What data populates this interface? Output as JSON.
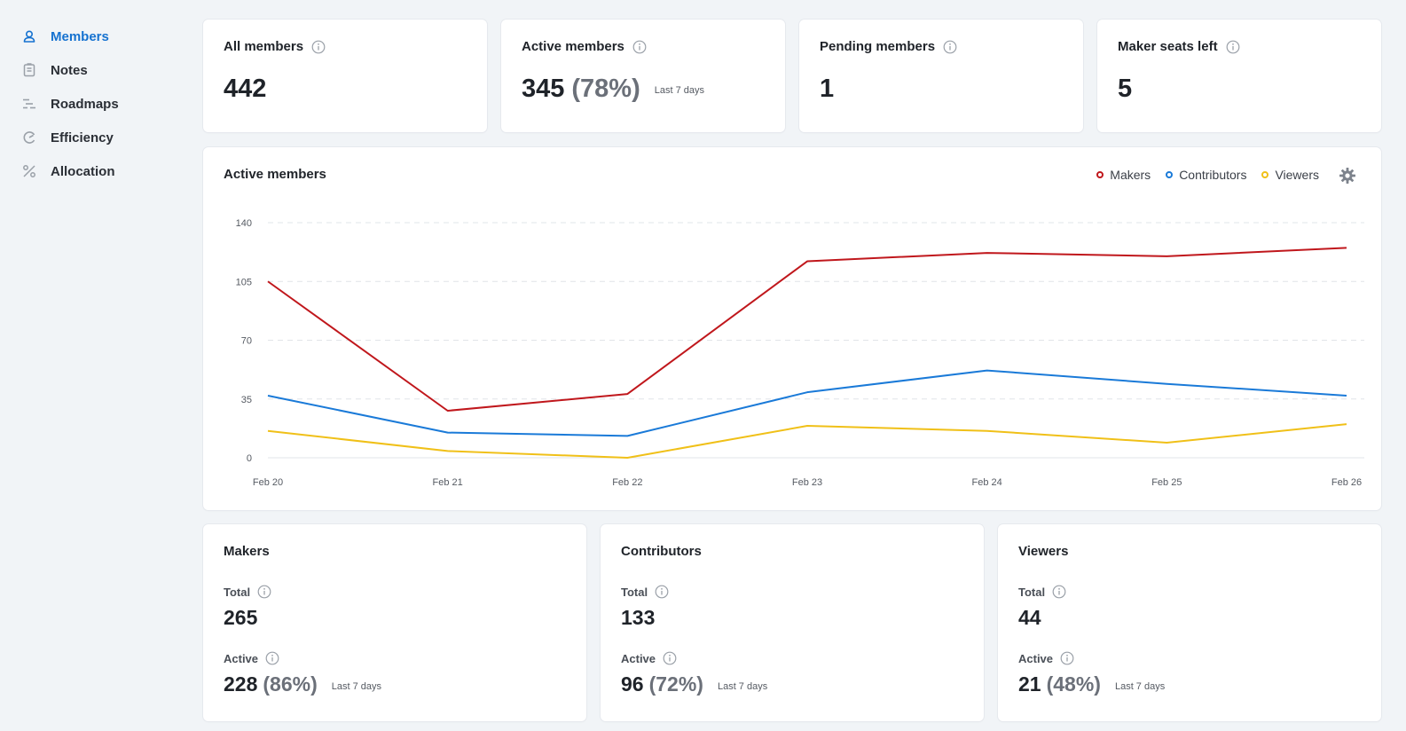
{
  "sidebar": {
    "items": [
      {
        "label": "Members",
        "icon": "members-icon",
        "active": true
      },
      {
        "label": "Notes",
        "icon": "notes-icon",
        "active": false
      },
      {
        "label": "Roadmaps",
        "icon": "roadmaps-icon",
        "active": false
      },
      {
        "label": "Efficiency",
        "icon": "efficiency-icon",
        "active": false
      },
      {
        "label": "Allocation",
        "icon": "allocation-icon",
        "active": false
      }
    ]
  },
  "stats": [
    {
      "title": "All members",
      "value": "442",
      "pct": "",
      "note": ""
    },
    {
      "title": "Active members",
      "value": "345",
      "pct": "(78%)",
      "note": "Last 7 days"
    },
    {
      "title": "Pending members",
      "value": "1",
      "pct": "",
      "note": ""
    },
    {
      "title": "Maker seats left",
      "value": "5",
      "pct": "",
      "note": ""
    }
  ],
  "chart": {
    "title": "Active members",
    "legend": [
      "Makers",
      "Contributors",
      "Viewers"
    ]
  },
  "colors": {
    "accent": "#1672d0",
    "makers": "#c0171c",
    "contributors": "#1a7ad8",
    "viewers": "#f0c018"
  },
  "chart_data": {
    "type": "line",
    "title": "Active members",
    "categories": [
      "Feb 20",
      "Feb 21",
      "Feb 22",
      "Feb 23",
      "Feb 24",
      "Feb 25",
      "Feb 26"
    ],
    "series": [
      {
        "name": "Makers",
        "values": [
          105,
          28,
          38,
          117,
          122,
          120,
          125
        ]
      },
      {
        "name": "Contributors",
        "values": [
          37,
          15,
          13,
          39,
          52,
          44,
          37
        ]
      },
      {
        "name": "Viewers",
        "values": [
          16,
          4,
          0,
          19,
          16,
          9,
          20
        ]
      }
    ],
    "yticks": [
      0,
      35,
      70,
      105,
      140
    ],
    "ylim": [
      0,
      140
    ],
    "grid": true,
    "legend_position": "top-right"
  },
  "breakdown": [
    {
      "title": "Makers",
      "total_label": "Total",
      "total": "265",
      "active_label": "Active",
      "active": "228",
      "active_pct": "(86%)",
      "note": "Last 7 days"
    },
    {
      "title": "Contributors",
      "total_label": "Total",
      "total": "133",
      "active_label": "Active",
      "active": "96",
      "active_pct": "(72%)",
      "note": "Last 7 days"
    },
    {
      "title": "Viewers",
      "total_label": "Total",
      "total": "44",
      "active_label": "Active",
      "active": "21",
      "active_pct": "(48%)",
      "note": "Last 7 days"
    }
  ]
}
